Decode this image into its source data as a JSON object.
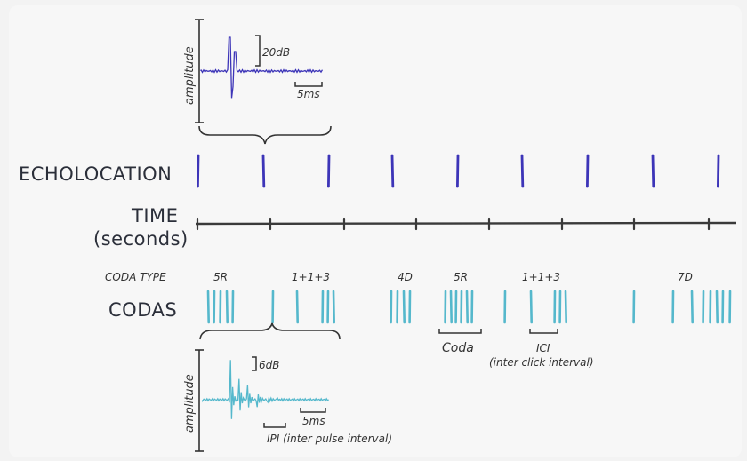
{
  "labels": {
    "echolocation": "ECHOLOCATION",
    "time_line1": "TIME",
    "time_line2": "(seconds)",
    "coda_type": "CODA TYPE",
    "codas": "CODAS"
  },
  "coda_types": [
    "5R",
    "1+1+3",
    "4D",
    "5R",
    "1+1+3",
    "7D"
  ],
  "echo_inset": {
    "y_label": "amplitude",
    "scale_y": "20dB",
    "scale_x": "5ms"
  },
  "coda_inset": {
    "y_label": "amplitude",
    "scale_y": "6dB",
    "scale_x": "5ms",
    "annotation": "IPI (inter pulse interval)"
  },
  "annotations": {
    "coda": "Coda",
    "ici": "ICI",
    "ici_full": "(inter click interval)"
  },
  "colors": {
    "echolocation": "#3d35b8",
    "codas": "#55b8cc",
    "timeline": "#3a3a3a",
    "ink": "#333333"
  },
  "icons": {
    "brace": "curly-brace",
    "scale_bar": "scale-bar"
  }
}
